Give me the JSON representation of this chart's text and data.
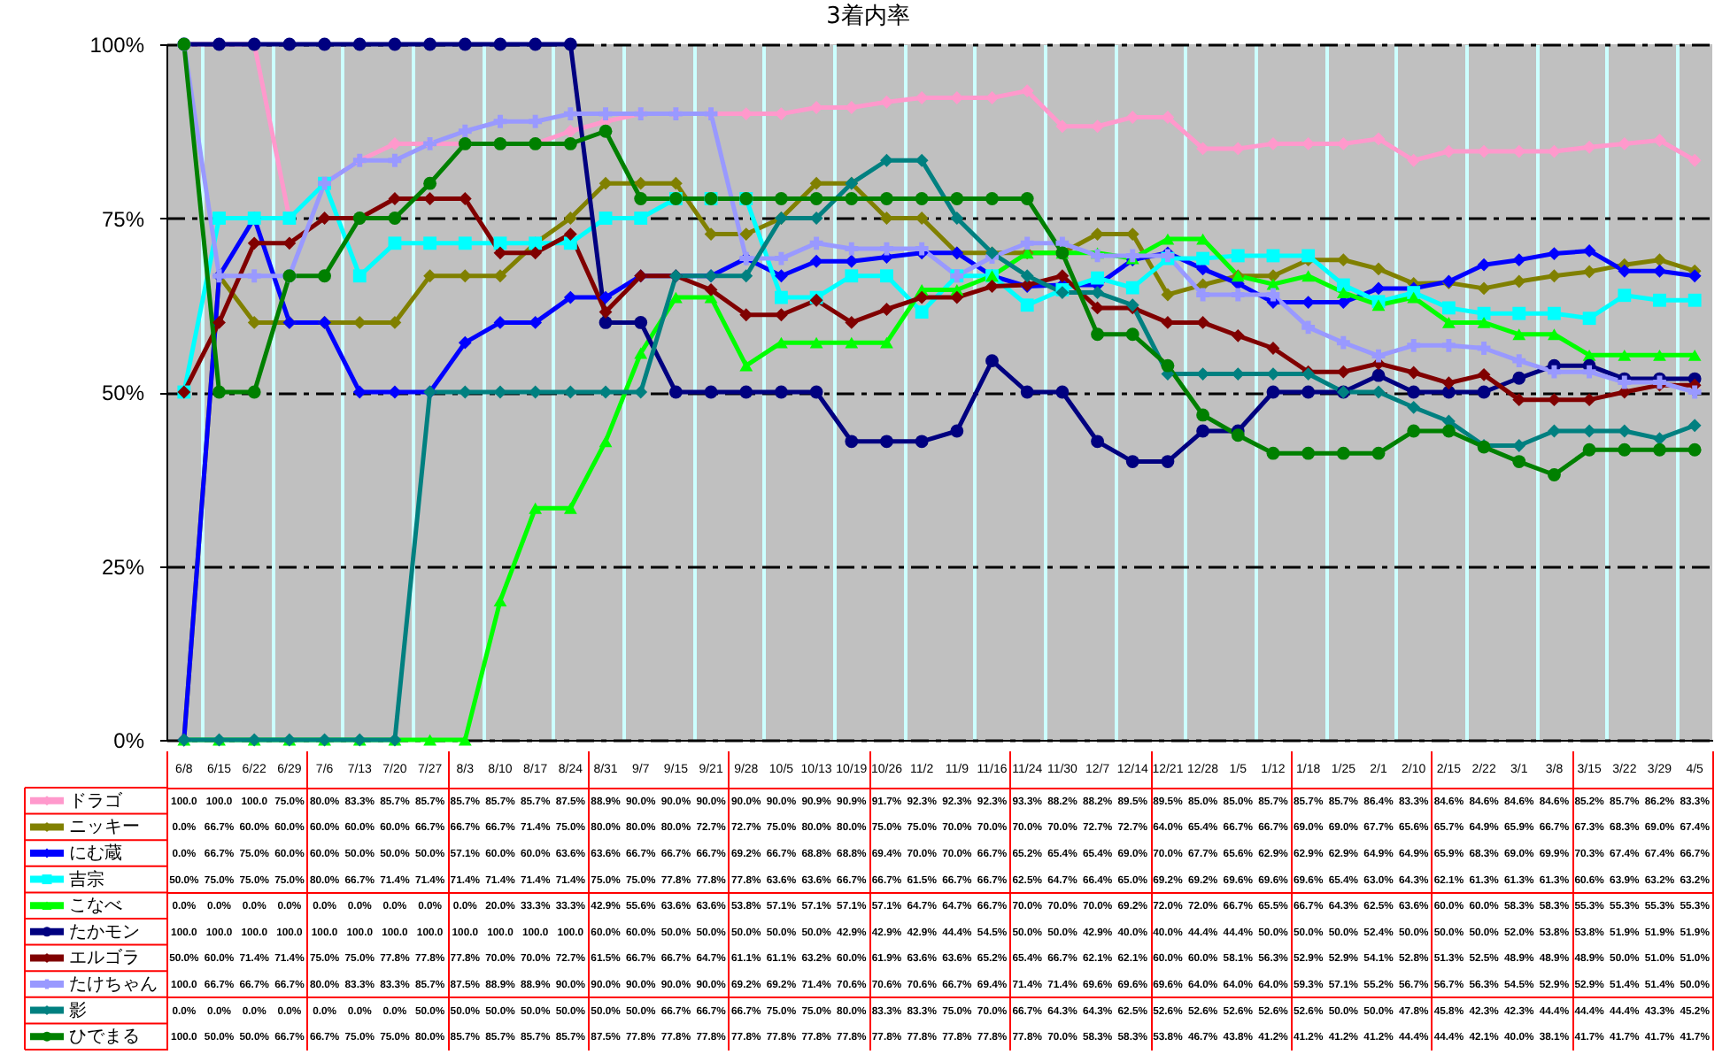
{
  "chart_data": {
    "type": "line",
    "title": "3着内率",
    "categories": [
      "6/8",
      "6/15",
      "6/22",
      "6/29",
      "7/6",
      "7/13",
      "7/20",
      "7/27",
      "8/3",
      "8/10",
      "8/17",
      "8/24",
      "8/31",
      "9/7",
      "9/15",
      "9/21",
      "9/28",
      "10/5",
      "10/13",
      "10/19",
      "10/26",
      "11/2",
      "11/9",
      "11/16",
      "11/24",
      "11/30",
      "12/7",
      "12/14",
      "12/21",
      "12/28",
      "1/5",
      "1/12",
      "1/18",
      "1/25",
      "2/1",
      "2/10",
      "2/15",
      "2/22",
      "3/1",
      "3/8",
      "3/15",
      "3/22",
      "3/29",
      "4/5"
    ],
    "ylim": [
      0,
      100
    ],
    "yticks": [
      {
        "value": 0,
        "label": "0%"
      },
      {
        "value": 25,
        "label": "25%"
      },
      {
        "value": 50,
        "label": "50%"
      },
      {
        "value": 75,
        "label": "75%"
      },
      {
        "value": 100,
        "label": "100%"
      }
    ],
    "grid": true,
    "legend": "bottom",
    "series": [
      {
        "name": "ドラゴ",
        "color": "#ff99cc",
        "marker": "diamond",
        "values": [
          100,
          100,
          100,
          75,
          80,
          83.3,
          85.7,
          85.7,
          85.7,
          85.7,
          85.7,
          87.5,
          88.9,
          90,
          90,
          90,
          90,
          90,
          90.9,
          90.9,
          91.7,
          92.3,
          92.3,
          92.3,
          93.3,
          88.2,
          88.2,
          89.5,
          89.5,
          85,
          85,
          85.7,
          85.7,
          85.7,
          86.4,
          83.3,
          84.6,
          84.6,
          84.6,
          84.6,
          85.2,
          85.7,
          86.2,
          83.3
        ],
        "value_labels": [
          "100.0",
          "100.0",
          "100.0",
          "75.0%",
          "80.0%",
          "83.3%",
          "85.7%",
          "85.7%",
          "85.7%",
          "85.7%",
          "85.7%",
          "87.5%",
          "88.9%",
          "90.0%",
          "90.0%",
          "90.0%",
          "90.0%",
          "90.0%",
          "90.9%",
          "90.9%",
          "91.7%",
          "92.3%",
          "92.3%",
          "92.3%",
          "93.3%",
          "88.2%",
          "88.2%",
          "89.5%",
          "89.5%",
          "85.0%",
          "85.0%",
          "85.7%",
          "85.7%",
          "85.7%",
          "86.4%",
          "83.3%",
          "84.6%",
          "84.6%",
          "84.6%",
          "84.6%",
          "85.2%",
          "85.7%",
          "86.2%",
          "83.3%"
        ]
      },
      {
        "name": "ニッキー",
        "color": "#808000",
        "marker": "diamond",
        "values": [
          0,
          66.7,
          60,
          60,
          60,
          60,
          60,
          66.7,
          66.7,
          66.7,
          71.4,
          75,
          80,
          80,
          80,
          72.7,
          72.7,
          75,
          80,
          80,
          75,
          75,
          70,
          70,
          70,
          70,
          72.7,
          72.7,
          64,
          65.4,
          66.7,
          66.7,
          69,
          69,
          67.7,
          65.6,
          65.7,
          64.9,
          65.9,
          66.7,
          67.3,
          68.3,
          69,
          67.4
        ],
        "value_labels": [
          "0.0%",
          "66.7%",
          "60.0%",
          "60.0%",
          "60.0%",
          "60.0%",
          "60.0%",
          "66.7%",
          "66.7%",
          "66.7%",
          "71.4%",
          "75.0%",
          "80.0%",
          "80.0%",
          "80.0%",
          "72.7%",
          "72.7%",
          "75.0%",
          "80.0%",
          "80.0%",
          "75.0%",
          "75.0%",
          "70.0%",
          "70.0%",
          "70.0%",
          "70.0%",
          "72.7%",
          "72.7%",
          "64.0%",
          "65.4%",
          "66.7%",
          "66.7%",
          "69.0%",
          "69.0%",
          "67.7%",
          "65.6%",
          "65.7%",
          "64.9%",
          "65.9%",
          "66.7%",
          "67.3%",
          "68.3%",
          "69.0%",
          "67.4%"
        ]
      },
      {
        "name": "にむ蔵",
        "color": "#0000ff",
        "marker": "diamond",
        "values": [
          0,
          66.7,
          75,
          60,
          60,
          50,
          50,
          50,
          57.1,
          60,
          60,
          63.6,
          63.6,
          66.7,
          66.7,
          66.7,
          69.2,
          66.7,
          68.8,
          68.8,
          69.4,
          70,
          70,
          66.7,
          65.2,
          65.4,
          65.4,
          69,
          70,
          67.7,
          65.6,
          62.9,
          62.9,
          62.9,
          64.9,
          64.9,
          65.9,
          68.3,
          69,
          69.9,
          70.3,
          67.4,
          67.4,
          66.7
        ],
        "value_labels": [
          "0.0%",
          "66.7%",
          "75.0%",
          "60.0%",
          "60.0%",
          "50.0%",
          "50.0%",
          "50.0%",
          "57.1%",
          "60.0%",
          "60.0%",
          "63.6%",
          "63.6%",
          "66.7%",
          "66.7%",
          "66.7%",
          "69.2%",
          "66.7%",
          "68.8%",
          "68.8%",
          "69.4%",
          "70.0%",
          "70.0%",
          "66.7%",
          "65.2%",
          "65.4%",
          "65.4%",
          "69.0%",
          "70.0%",
          "67.7%",
          "65.6%",
          "62.9%",
          "62.9%",
          "62.9%",
          "64.9%",
          "64.9%",
          "65.9%",
          "68.3%",
          "69.0%",
          "69.9%",
          "70.3%",
          "67.4%",
          "67.4%",
          "66.7%"
        ]
      },
      {
        "name": "吉宗",
        "color": "#00ffff",
        "marker": "square",
        "values": [
          50,
          75,
          75,
          75,
          80,
          66.7,
          71.4,
          71.4,
          71.4,
          71.4,
          71.4,
          71.4,
          75,
          75,
          77.8,
          77.8,
          77.8,
          63.6,
          63.6,
          66.7,
          66.7,
          61.5,
          66.7,
          66.7,
          62.5,
          64.7,
          66.4,
          65,
          69.2,
          69.2,
          69.6,
          69.6,
          69.6,
          65.4,
          63,
          64.3,
          62.1,
          61.3,
          61.3,
          61.3,
          60.6,
          63.9,
          63.2,
          63.2
        ],
        "value_labels": [
          "50.0%",
          "75.0%",
          "75.0%",
          "75.0%",
          "80.0%",
          "66.7%",
          "71.4%",
          "71.4%",
          "71.4%",
          "71.4%",
          "71.4%",
          "71.4%",
          "75.0%",
          "75.0%",
          "77.8%",
          "77.8%",
          "77.8%",
          "63.6%",
          "63.6%",
          "66.7%",
          "66.7%",
          "61.5%",
          "66.7%",
          "66.7%",
          "62.5%",
          "64.7%",
          "66.4%",
          "65.0%",
          "69.2%",
          "69.2%",
          "69.6%",
          "69.6%",
          "69.6%",
          "65.4%",
          "63.0%",
          "64.3%",
          "62.1%",
          "61.3%",
          "61.3%",
          "61.3%",
          "60.6%",
          "63.9%",
          "63.2%",
          "63.2%"
        ]
      },
      {
        "name": "こなべ",
        "color": "#00ff00",
        "marker": "triangle",
        "values": [
          0,
          0,
          0,
          0,
          0,
          0,
          0,
          0,
          0,
          20,
          33.3,
          33.3,
          42.9,
          55.6,
          63.6,
          63.6,
          53.8,
          57.1,
          57.1,
          57.1,
          57.1,
          64.7,
          64.7,
          66.7,
          70,
          70,
          70,
          69.2,
          72,
          72,
          66.7,
          65.5,
          66.7,
          64.3,
          62.5,
          63.6,
          60,
          60,
          58.3,
          58.3,
          55.3,
          55.3,
          55.3,
          55.3
        ],
        "value_labels": [
          "0.0%",
          "0.0%",
          "0.0%",
          "0.0%",
          "0.0%",
          "0.0%",
          "0.0%",
          "0.0%",
          "0.0%",
          "20.0%",
          "33.3%",
          "33.3%",
          "42.9%",
          "55.6%",
          "63.6%",
          "63.6%",
          "53.8%",
          "57.1%",
          "57.1%",
          "57.1%",
          "57.1%",
          "64.7%",
          "64.7%",
          "66.7%",
          "70.0%",
          "70.0%",
          "70.0%",
          "69.2%",
          "72.0%",
          "72.0%",
          "66.7%",
          "65.5%",
          "66.7%",
          "64.3%",
          "62.5%",
          "63.6%",
          "60.0%",
          "60.0%",
          "58.3%",
          "58.3%",
          "55.3%",
          "55.3%",
          "55.3%",
          "55.3%"
        ]
      },
      {
        "name": "たかモン",
        "color": "#000080",
        "marker": "circle",
        "values": [
          100,
          100,
          100,
          100,
          100,
          100,
          100,
          100,
          100,
          100,
          100,
          100,
          60,
          60,
          50,
          50,
          50,
          50,
          50,
          42.9,
          42.9,
          42.9,
          44.4,
          54.5,
          50,
          50,
          42.9,
          40,
          40,
          44.4,
          44.4,
          50,
          50,
          50,
          52.4,
          50,
          50,
          50,
          52,
          53.8,
          53.8,
          51.9,
          51.9,
          51.9
        ],
        "value_labels": [
          "100.0",
          "100.0",
          "100.0",
          "100.0",
          "100.0",
          "100.0",
          "100.0",
          "100.0",
          "100.0",
          "100.0",
          "100.0",
          "100.0",
          "60.0%",
          "60.0%",
          "50.0%",
          "50.0%",
          "50.0%",
          "50.0%",
          "50.0%",
          "42.9%",
          "42.9%",
          "42.9%",
          "44.4%",
          "54.5%",
          "50.0%",
          "50.0%",
          "42.9%",
          "40.0%",
          "40.0%",
          "44.4%",
          "44.4%",
          "50.0%",
          "50.0%",
          "50.0%",
          "52.4%",
          "50.0%",
          "50.0%",
          "50.0%",
          "52.0%",
          "53.8%",
          "53.8%",
          "51.9%",
          "51.9%",
          "51.9%"
        ]
      },
      {
        "name": "エルゴラ",
        "color": "#800000",
        "marker": "diamond",
        "values": [
          50,
          60,
          71.4,
          71.4,
          75,
          75,
          77.8,
          77.8,
          77.8,
          70,
          70,
          72.7,
          61.5,
          66.7,
          66.7,
          64.7,
          61.1,
          61.1,
          63.2,
          60,
          61.9,
          63.6,
          63.6,
          65.2,
          65.4,
          66.7,
          62.1,
          62.1,
          60,
          60,
          58.1,
          56.3,
          52.9,
          52.9,
          54.1,
          52.8,
          51.3,
          52.5,
          48.9,
          48.9,
          48.9,
          50,
          51,
          51
        ],
        "value_labels": [
          "50.0%",
          "60.0%",
          "71.4%",
          "71.4%",
          "75.0%",
          "75.0%",
          "77.8%",
          "77.8%",
          "77.8%",
          "70.0%",
          "70.0%",
          "72.7%",
          "61.5%",
          "66.7%",
          "66.7%",
          "64.7%",
          "61.1%",
          "61.1%",
          "63.2%",
          "60.0%",
          "61.9%",
          "63.6%",
          "63.6%",
          "65.2%",
          "65.4%",
          "66.7%",
          "62.1%",
          "62.1%",
          "60.0%",
          "60.0%",
          "58.1%",
          "56.3%",
          "52.9%",
          "52.9%",
          "54.1%",
          "52.8%",
          "51.3%",
          "52.5%",
          "48.9%",
          "48.9%",
          "48.9%",
          "50.0%",
          "51.0%",
          "51.0%"
        ]
      },
      {
        "name": "たけちゃん",
        "color": "#9999ff",
        "marker": "cross",
        "values": [
          100,
          66.7,
          66.7,
          66.7,
          80,
          83.3,
          83.3,
          85.7,
          87.5,
          88.9,
          88.9,
          90,
          90,
          90,
          90,
          90,
          69.2,
          69.2,
          71.4,
          70.6,
          70.6,
          70.6,
          66.7,
          69.4,
          71.4,
          71.4,
          69.6,
          69.6,
          69.6,
          64,
          64,
          64,
          59.3,
          57.1,
          55.2,
          56.7,
          56.7,
          56.3,
          54.5,
          52.9,
          52.9,
          51.4,
          51.4,
          50
        ],
        "value_labels": [
          "100.0",
          "66.7%",
          "66.7%",
          "66.7%",
          "80.0%",
          "83.3%",
          "83.3%",
          "85.7%",
          "87.5%",
          "88.9%",
          "88.9%",
          "90.0%",
          "90.0%",
          "90.0%",
          "90.0%",
          "90.0%",
          "69.2%",
          "69.2%",
          "71.4%",
          "70.6%",
          "70.6%",
          "70.6%",
          "66.7%",
          "69.4%",
          "71.4%",
          "71.4%",
          "69.6%",
          "69.6%",
          "69.6%",
          "64.0%",
          "64.0%",
          "64.0%",
          "59.3%",
          "57.1%",
          "55.2%",
          "56.7%",
          "56.7%",
          "56.3%",
          "54.5%",
          "52.9%",
          "52.9%",
          "51.4%",
          "51.4%",
          "50.0%"
        ]
      },
      {
        "name": "影",
        "color": "#008080",
        "marker": "diamond",
        "values": [
          0,
          0,
          0,
          0,
          0,
          0,
          0,
          50,
          50,
          50,
          50,
          50,
          50,
          50,
          66.7,
          66.7,
          66.7,
          75,
          75,
          80,
          83.3,
          83.3,
          75,
          70,
          66.7,
          64.3,
          64.3,
          62.5,
          52.6,
          52.6,
          52.6,
          52.6,
          52.6,
          50,
          50,
          47.8,
          45.8,
          42.3,
          42.3,
          44.4,
          44.4,
          44.4,
          43.3,
          45.2
        ],
        "value_labels": [
          "0.0%",
          "0.0%",
          "0.0%",
          "0.0%",
          "0.0%",
          "0.0%",
          "0.0%",
          "50.0%",
          "50.0%",
          "50.0%",
          "50.0%",
          "50.0%",
          "50.0%",
          "50.0%",
          "66.7%",
          "66.7%",
          "66.7%",
          "75.0%",
          "75.0%",
          "80.0%",
          "83.3%",
          "83.3%",
          "75.0%",
          "70.0%",
          "66.7%",
          "64.3%",
          "64.3%",
          "62.5%",
          "52.6%",
          "52.6%",
          "52.6%",
          "52.6%",
          "52.6%",
          "50.0%",
          "50.0%",
          "47.8%",
          "45.8%",
          "42.3%",
          "42.3%",
          "44.4%",
          "44.4%",
          "44.4%",
          "43.3%",
          "45.2%"
        ]
      },
      {
        "name": "ひでまる",
        "color": "#008000",
        "marker": "circle",
        "values": [
          100,
          50,
          50,
          66.7,
          66.7,
          75,
          75,
          80,
          85.7,
          85.7,
          85.7,
          85.7,
          87.5,
          77.8,
          77.8,
          77.8,
          77.8,
          77.8,
          77.8,
          77.8,
          77.8,
          77.8,
          77.8,
          77.8,
          77.8,
          70,
          58.3,
          58.3,
          53.8,
          46.7,
          43.8,
          41.2,
          41.2,
          41.2,
          41.2,
          44.4,
          44.4,
          42.1,
          40,
          38.1,
          41.7,
          41.7,
          41.7,
          41.7
        ],
        "value_labels": [
          "100.0",
          "50.0%",
          "50.0%",
          "66.7%",
          "66.7%",
          "75.0%",
          "75.0%",
          "80.0%",
          "85.7%",
          "85.7%",
          "85.7%",
          "85.7%",
          "87.5%",
          "77.8%",
          "77.8%",
          "77.8%",
          "77.8%",
          "77.8%",
          "77.8%",
          "77.8%",
          "77.8%",
          "77.8%",
          "77.8%",
          "77.8%",
          "77.8%",
          "70.0%",
          "58.3%",
          "58.3%",
          "53.8%",
          "46.7%",
          "43.8%",
          "41.2%",
          "41.2%",
          "41.2%",
          "41.2%",
          "44.4%",
          "44.4%",
          "42.1%",
          "40.0%",
          "38.1%",
          "41.7%",
          "41.7%",
          "41.7%",
          "41.7%"
        ]
      }
    ]
  }
}
